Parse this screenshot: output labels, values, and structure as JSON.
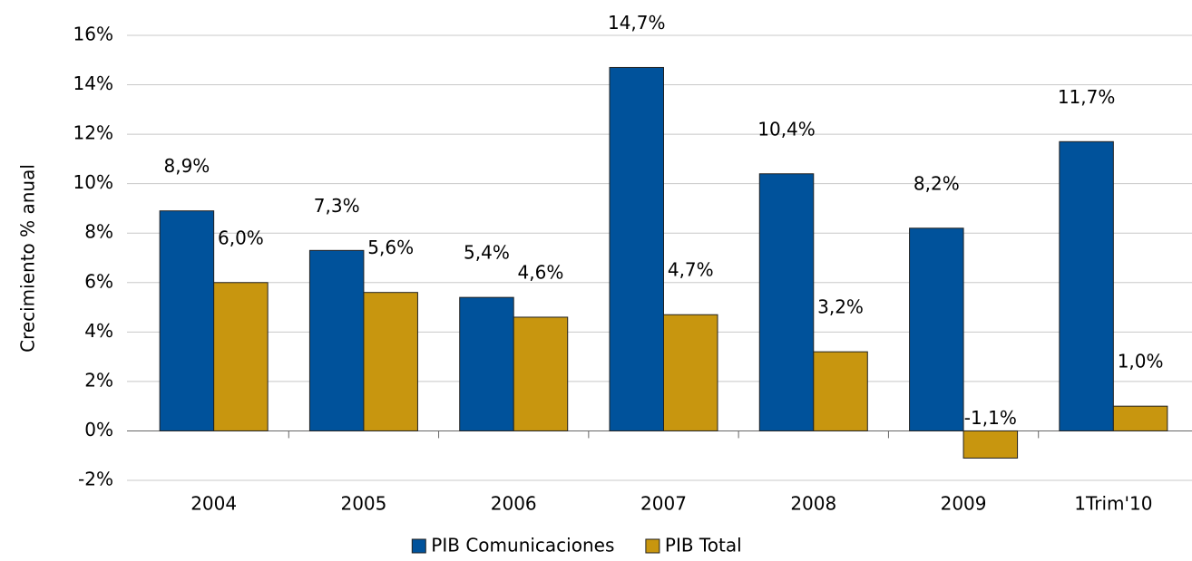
{
  "chart_data": {
    "type": "bar",
    "y_label": "Crecimiento % anual",
    "categories": [
      "2004",
      "2005",
      "2006",
      "2007",
      "2008",
      "2009",
      "1Trim'10"
    ],
    "series": [
      {
        "name": "PIB Comunicaciones",
        "color": "#00529b",
        "values": [
          8.9,
          7.3,
          5.4,
          14.7,
          10.4,
          8.2,
          11.7
        ],
        "value_labels": [
          "8,9%",
          "7,3%",
          "5,4%",
          "14,7%",
          "10,4%",
          "8,2%",
          "11,7%"
        ]
      },
      {
        "name": "PIB Total",
        "color": "#c8960f",
        "values": [
          6.0,
          5.6,
          4.6,
          4.7,
          3.2,
          -1.1,
          1.0
        ],
        "value_labels": [
          "6,0%",
          "5,6%",
          "4,6%",
          "4,7%",
          "3,2%",
          "-1,1%",
          "1,0%"
        ]
      }
    ],
    "ylim": [
      -2,
      16
    ],
    "yticks": [
      {
        "value": -2,
        "label": "-2%"
      },
      {
        "value": 0,
        "label": "0%"
      },
      {
        "value": 2,
        "label": "2%"
      },
      {
        "value": 4,
        "label": "4%"
      },
      {
        "value": 6,
        "label": "6%"
      },
      {
        "value": 8,
        "label": "8%"
      },
      {
        "value": 10,
        "label": "10%"
      },
      {
        "value": 12,
        "label": "12%"
      },
      {
        "value": 14,
        "label": "14%"
      },
      {
        "value": 16,
        "label": "16%"
      }
    ],
    "grid": true
  }
}
